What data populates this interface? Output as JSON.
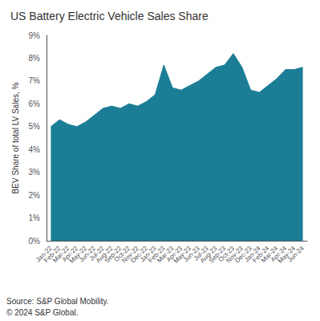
{
  "chart_data": {
    "type": "area",
    "title": "US Battery Electric Vehicle Sales Share",
    "ylabel": "BEV Share of total LV Sales, %",
    "annotations": [
      "Source: S&P Global Mobility.",
      "© 2024 S&P Global."
    ],
    "categories": [
      "Jan-22",
      "Feb-22",
      "Mar-22",
      "Apr-22",
      "May-22",
      "Jun-22",
      "Jul-22",
      "Aug-22",
      "Sep-22",
      "Oct-22",
      "Nov-22",
      "Dec-22",
      "Jan-23",
      "Feb-23",
      "Mar-23",
      "Apr-23",
      "May-23",
      "Jun-23",
      "Jul-23",
      "Aug-23",
      "Sep-23",
      "Oct-23",
      "Nov-23",
      "Dec-23",
      "Jan-24",
      "Feb-24",
      "Mar-24",
      "Apr-24",
      "May-24",
      "Jun-24"
    ],
    "values": [
      5.0,
      5.3,
      5.1,
      5.0,
      5.2,
      5.5,
      5.8,
      5.9,
      5.8,
      6.0,
      5.9,
      6.1,
      6.4,
      7.7,
      6.7,
      6.6,
      6.8,
      7.0,
      7.3,
      7.6,
      7.7,
      8.2,
      7.6,
      6.6,
      6.5,
      6.8,
      7.1,
      7.5,
      7.5,
      7.6
    ],
    "color": "#1c7d96",
    "ylim": [
      0,
      9
    ],
    "yticks": [
      {
        "value": 0,
        "label": "0%"
      },
      {
        "value": 1,
        "label": "1%"
      },
      {
        "value": 2,
        "label": "2%"
      },
      {
        "value": 3,
        "label": "3%"
      },
      {
        "value": 4,
        "label": "4%"
      },
      {
        "value": 5,
        "label": "5%"
      },
      {
        "value": 6,
        "label": "6%"
      },
      {
        "value": 7,
        "label": "7%"
      },
      {
        "value": 8,
        "label": "8%"
      },
      {
        "value": 9,
        "label": "9%"
      }
    ],
    "grid": false
  }
}
